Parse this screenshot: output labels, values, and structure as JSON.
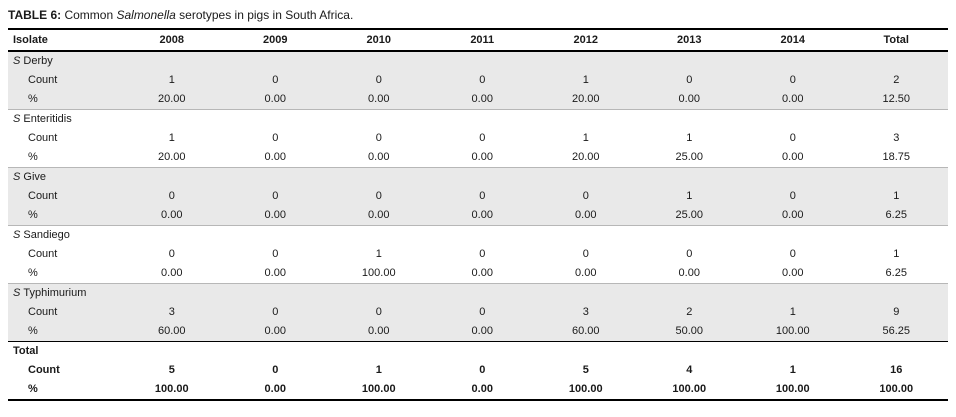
{
  "caption": {
    "label": "TABLE 6:",
    "pre_italic": " Common ",
    "italic": "Salmonella",
    "post_italic": " serotypes in pigs in South Africa."
  },
  "table": {
    "columns": [
      "Isolate",
      "2008",
      "2009",
      "2010",
      "2011",
      "2012",
      "2013",
      "2014",
      "Total"
    ],
    "groups": [
      {
        "genus": "S",
        "name": "Derby",
        "shaded": true,
        "bold": false,
        "rows": [
          {
            "label": "Count",
            "values": [
              "1",
              "0",
              "0",
              "0",
              "1",
              "0",
              "0",
              "2"
            ]
          },
          {
            "label": "%",
            "values": [
              "20.00",
              "0.00",
              "0.00",
              "0.00",
              "20.00",
              "0.00",
              "0.00",
              "12.50"
            ]
          }
        ]
      },
      {
        "genus": "S",
        "name": "Enteritidis",
        "shaded": false,
        "bold": false,
        "rows": [
          {
            "label": "Count",
            "values": [
              "1",
              "0",
              "0",
              "0",
              "1",
              "1",
              "0",
              "3"
            ]
          },
          {
            "label": "%",
            "values": [
              "20.00",
              "0.00",
              "0.00",
              "0.00",
              "20.00",
              "25.00",
              "0.00",
              "18.75"
            ]
          }
        ]
      },
      {
        "genus": "S",
        "name": "Give",
        "shaded": true,
        "bold": false,
        "rows": [
          {
            "label": "Count",
            "values": [
              "0",
              "0",
              "0",
              "0",
              "0",
              "1",
              "0",
              "1"
            ]
          },
          {
            "label": "%",
            "values": [
              "0.00",
              "0.00",
              "0.00",
              "0.00",
              "0.00",
              "25.00",
              "0.00",
              "6.25"
            ]
          }
        ]
      },
      {
        "genus": "S",
        "name": "Sandiego",
        "shaded": false,
        "bold": false,
        "rows": [
          {
            "label": "Count",
            "values": [
              "0",
              "0",
              "1",
              "0",
              "0",
              "0",
              "0",
              "1"
            ]
          },
          {
            "label": "%",
            "values": [
              "0.00",
              "0.00",
              "100.00",
              "0.00",
              "0.00",
              "0.00",
              "0.00",
              "6.25"
            ]
          }
        ]
      },
      {
        "genus": "S",
        "name": "Typhimurium",
        "shaded": true,
        "bold": false,
        "rows": [
          {
            "label": "Count",
            "values": [
              "3",
              "0",
              "0",
              "0",
              "3",
              "2",
              "1",
              "9"
            ]
          },
          {
            "label": "%",
            "values": [
              "60.00",
              "0.00",
              "0.00",
              "0.00",
              "60.00",
              "50.00",
              "100.00",
              "56.25"
            ]
          }
        ]
      },
      {
        "genus": "",
        "name": "Total",
        "shaded": false,
        "bold": true,
        "rows": [
          {
            "label": "Count",
            "values": [
              "5",
              "0",
              "1",
              "0",
              "5",
              "4",
              "1",
              "16"
            ]
          },
          {
            "label": "%",
            "values": [
              "100.00",
              "0.00",
              "100.00",
              "0.00",
              "100.00",
              "100.00",
              "100.00",
              "100.00"
            ]
          }
        ]
      }
    ]
  },
  "colors": {
    "shaded_row": "#e9e9e9",
    "strong_border": "#000000",
    "group_divider": "#b7b7b7",
    "text": "#1a1a1a"
  },
  "chart_data": {
    "type": "table",
    "title": "TABLE 6: Common Salmonella serotypes in pigs in South Africa.",
    "columns": [
      "Isolate",
      "2008",
      "2009",
      "2010",
      "2011",
      "2012",
      "2013",
      "2014",
      "Total"
    ],
    "rows": [
      {
        "isolate": "S Derby",
        "metric": "Count",
        "values": [
          1,
          0,
          0,
          0,
          1,
          0,
          0,
          2
        ]
      },
      {
        "isolate": "S Derby",
        "metric": "%",
        "values": [
          20.0,
          0.0,
          0.0,
          0.0,
          20.0,
          0.0,
          0.0,
          12.5
        ]
      },
      {
        "isolate": "S Enteritidis",
        "metric": "Count",
        "values": [
          1,
          0,
          0,
          0,
          1,
          1,
          0,
          3
        ]
      },
      {
        "isolate": "S Enteritidis",
        "metric": "%",
        "values": [
          20.0,
          0.0,
          0.0,
          0.0,
          20.0,
          25.0,
          0.0,
          18.75
        ]
      },
      {
        "isolate": "S Give",
        "metric": "Count",
        "values": [
          0,
          0,
          0,
          0,
          0,
          1,
          0,
          1
        ]
      },
      {
        "isolate": "S Give",
        "metric": "%",
        "values": [
          0.0,
          0.0,
          0.0,
          0.0,
          0.0,
          25.0,
          0.0,
          6.25
        ]
      },
      {
        "isolate": "S Sandiego",
        "metric": "Count",
        "values": [
          0,
          0,
          1,
          0,
          0,
          0,
          0,
          1
        ]
      },
      {
        "isolate": "S Sandiego",
        "metric": "%",
        "values": [
          0.0,
          0.0,
          100.0,
          0.0,
          0.0,
          0.0,
          0.0,
          6.25
        ]
      },
      {
        "isolate": "S Typhimurium",
        "metric": "Count",
        "values": [
          3,
          0,
          0,
          0,
          3,
          2,
          1,
          9
        ]
      },
      {
        "isolate": "S Typhimurium",
        "metric": "%",
        "values": [
          60.0,
          0.0,
          0.0,
          0.0,
          60.0,
          50.0,
          100.0,
          56.25
        ]
      },
      {
        "isolate": "Total",
        "metric": "Count",
        "values": [
          5,
          0,
          1,
          0,
          5,
          4,
          1,
          16
        ]
      },
      {
        "isolate": "Total",
        "metric": "%",
        "values": [
          100.0,
          0.0,
          100.0,
          0.0,
          100.0,
          100.0,
          100.0,
          100.0
        ]
      }
    ]
  }
}
